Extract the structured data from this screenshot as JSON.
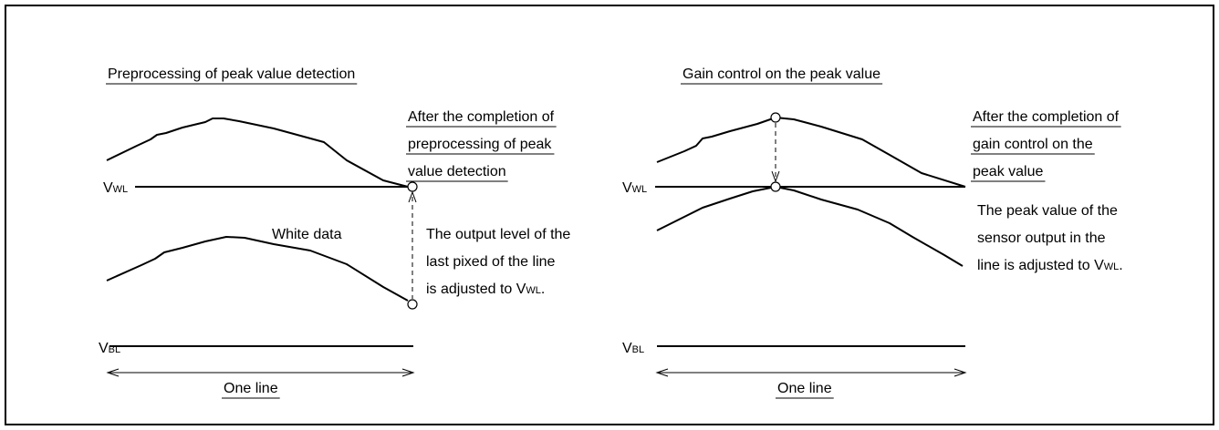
{
  "left": {
    "title": "Preprocessing of peak value detection",
    "completion_note": [
      "After the completion of",
      "preprocessing of peak",
      "value detection"
    ],
    "white_label": "White data",
    "adjust_note": [
      "The output level of the",
      "last pixed of the line",
      {
        "text": "is adjusted to V",
        "sub": "WL",
        "tail": "."
      }
    ],
    "vwl": {
      "base": "V",
      "sub": "WL"
    },
    "vbl": {
      "base": "V",
      "sub": "BL"
    },
    "span_label": "One line"
  },
  "right": {
    "title": "Gain control on the peak value",
    "completion_note": [
      "After the completion of",
      "gain control on the",
      "peak value"
    ],
    "peak_note": [
      "The peak value of the",
      "sensor output in the",
      {
        "text": "line is adjusted to V",
        "sub": "WL",
        "tail": "."
      }
    ],
    "vwl": {
      "base": "V",
      "sub": "WL"
    },
    "vbl": {
      "base": "V",
      "sub": "BL"
    },
    "span_label": "One line"
  }
}
